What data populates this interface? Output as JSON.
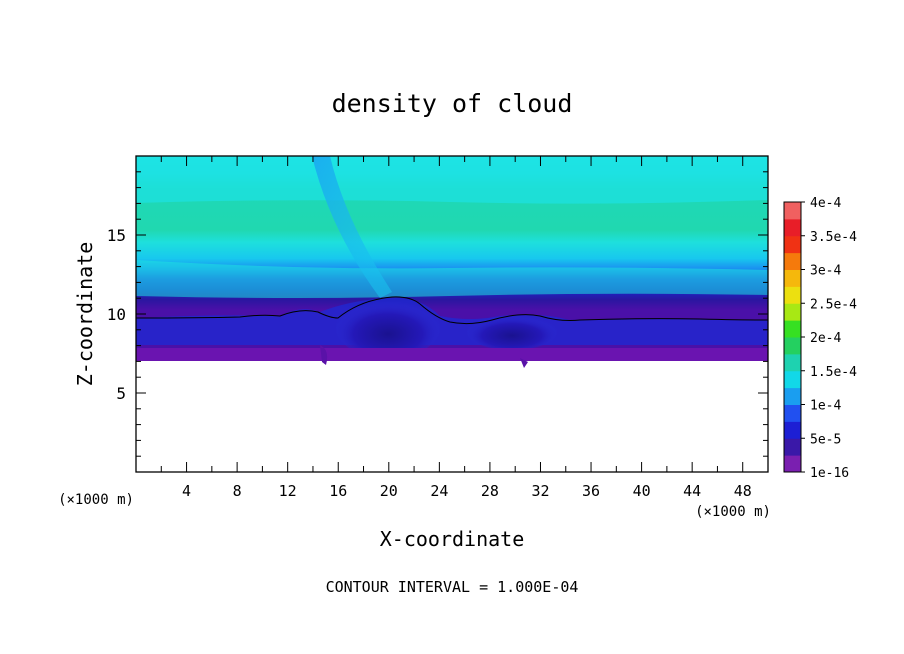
{
  "chart_data": {
    "type": "heatmap",
    "title": "density of cloud",
    "xlabel": "X-coordinate",
    "ylabel": "Z-coordinate",
    "x_unit": "(×1000 m)",
    "z_unit": "(×1000 m)",
    "xlim": [
      0,
      50
    ],
    "ylim": [
      0,
      20
    ],
    "x_ticks": [
      "4",
      "8",
      "12",
      "16",
      "20",
      "24",
      "28",
      "32",
      "36",
      "40",
      "44",
      "48"
    ],
    "y_ticks": [
      "5",
      "10",
      "15"
    ],
    "colorbar": {
      "labels": [
        "4e-4",
        "3.5e-4",
        "3e-4",
        "2.5e-4",
        "2e-4",
        "1.5e-4",
        "1e-4",
        "5e-5",
        "1e-16"
      ],
      "colors": [
        "#7a1fb0",
        "#3a18a8",
        "#1d1fd4",
        "#2150f0",
        "#1a9ef0",
        "#12d8e8",
        "#1ed2b0",
        "#24d060",
        "#36e022",
        "#a8e814",
        "#ece010",
        "#f5b80c",
        "#f57a0c",
        "#f03214",
        "#e81e28",
        "#f06060"
      ]
    },
    "contour_interval": "CONTOUR INTERVAL = 1.000E-04"
  }
}
